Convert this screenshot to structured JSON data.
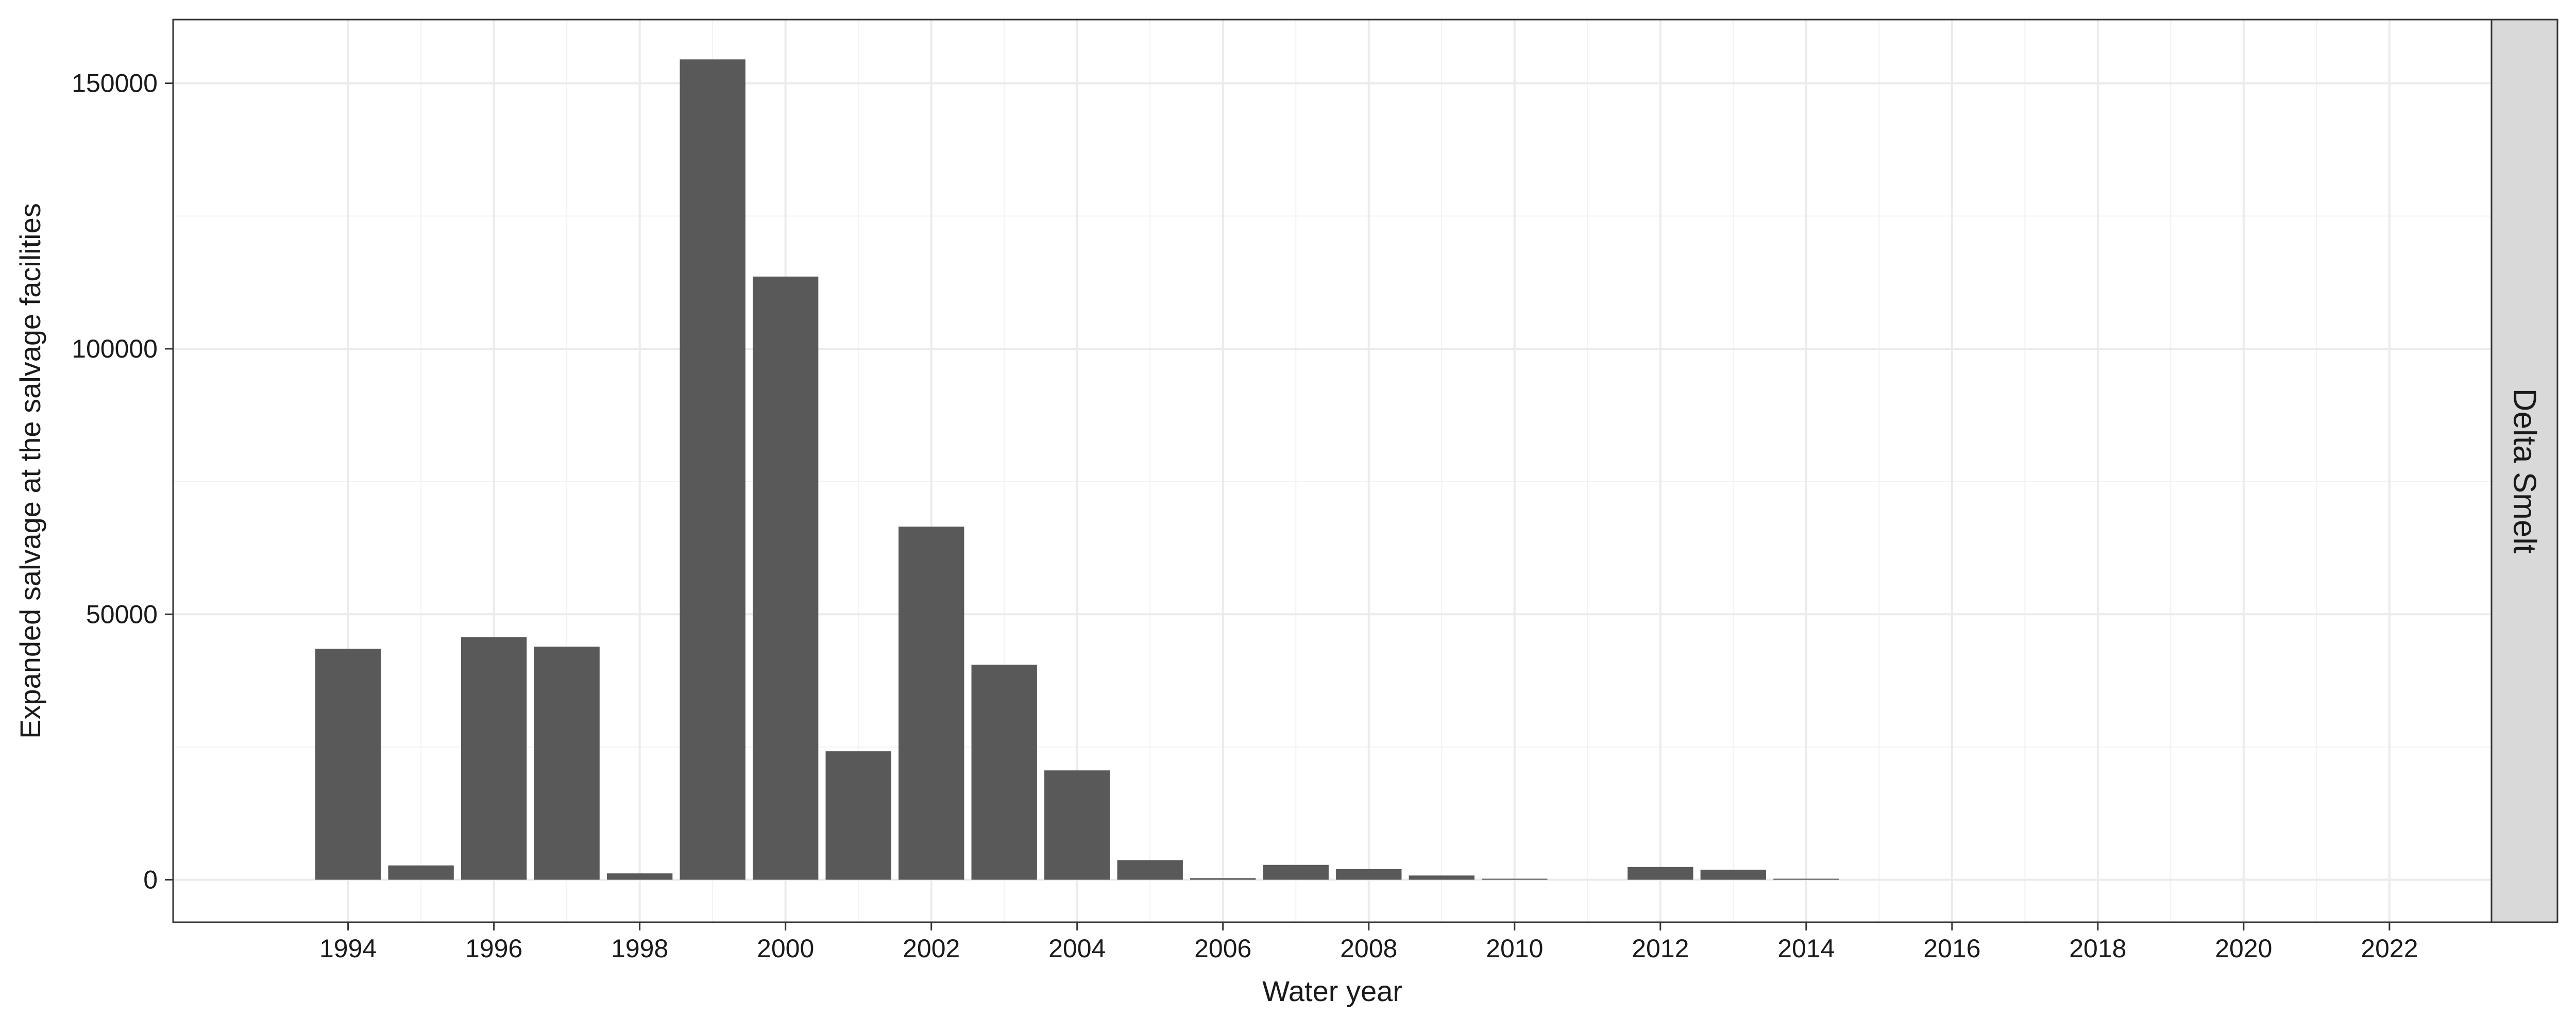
{
  "chart_data": {
    "type": "bar",
    "xlabel": "Water year",
    "ylabel": "Expanded salvage at the salvage facilities",
    "facet_label": "Delta Smelt",
    "x_ticks": [
      "1994",
      "1996",
      "1998",
      "2000",
      "2002",
      "2004",
      "2006",
      "2008",
      "2010",
      "2012",
      "2014",
      "2016",
      "2018",
      "2020",
      "2022"
    ],
    "y_ticks": [
      "0",
      "50000",
      "100000",
      "150000"
    ],
    "xlim": [
      1991.6,
      2023.4
    ],
    "ylim": [
      -8000,
      162000
    ],
    "categories": [
      1994,
      1995,
      1996,
      1997,
      1998,
      1999,
      2000,
      2001,
      2002,
      2003,
      2004,
      2005,
      2006,
      2007,
      2008,
      2009,
      2010,
      2011,
      2012,
      2013,
      2014,
      2015,
      2016,
      2017,
      2018,
      2019,
      2020,
      2021,
      2022
    ],
    "values": [
      43500,
      2700,
      45700,
      43900,
      1200,
      154500,
      113600,
      24200,
      66500,
      40500,
      20600,
      3700,
      300,
      2800,
      2000,
      800,
      200,
      0,
      2400,
      1900,
      200,
      0,
      0,
      0,
      0,
      0,
      0,
      0,
      0
    ],
    "bar_color": "#595959",
    "grid": true,
    "legend": "none"
  }
}
